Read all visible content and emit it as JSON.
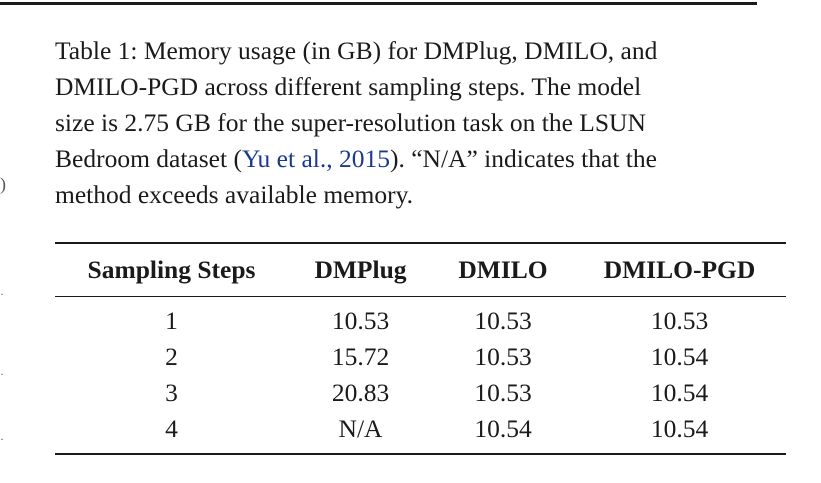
{
  "caption": {
    "line1": "Table 1: Memory usage (in GB) for DMPlug, DMILO, and",
    "line2": "DMILO-PGD across different sampling steps. The model",
    "line3": "size is 2.75 GB for the super-resolution task on the LSUN",
    "line4_before": "Bedroom dataset (",
    "line4_cite": "Yu et al., 2015",
    "line4_after": "). “N/A” indicates that the",
    "line5": "method exceeds available memory."
  },
  "table": {
    "headers": [
      "Sampling Steps",
      "DMPlug",
      "DMILO",
      "DMILO-PGD"
    ],
    "rows": [
      [
        "1",
        "10.53",
        "10.53",
        "10.53"
      ],
      [
        "2",
        "15.72",
        "10.53",
        "10.54"
      ],
      [
        "3",
        "20.83",
        "10.53",
        "10.54"
      ],
      [
        "4",
        "N/A",
        "10.54",
        "10.54"
      ]
    ]
  },
  "colors": {
    "text": "#1a1a1a",
    "citation": "#1c3a8c"
  }
}
